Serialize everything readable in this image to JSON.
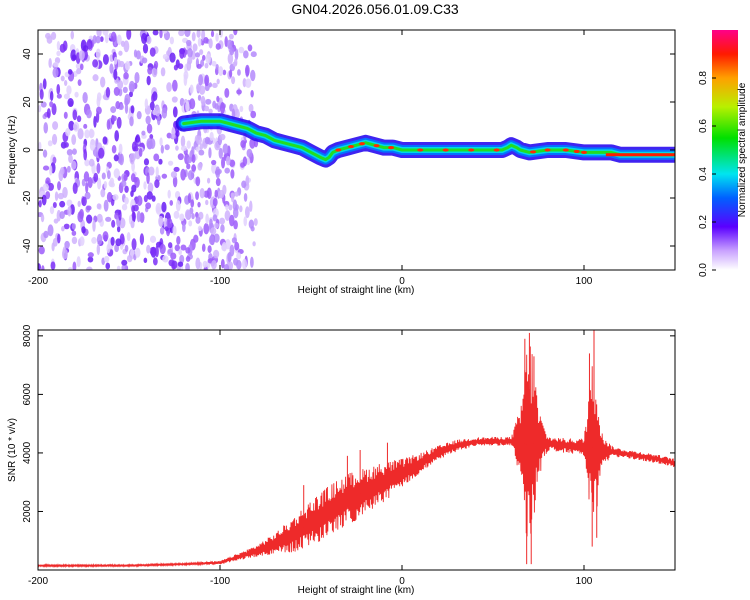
{
  "title": "GN04.2026.056.01.09.C33",
  "colors": {
    "background": "#ffffff",
    "spectrogram_noise": "#7b2ff7",
    "snr_line": "#ee2a2a",
    "axis": "#000000"
  },
  "chart_data": [
    {
      "type": "heatmap",
      "name": "spectrogram",
      "title": "GN04.2026.056.01.09.C33",
      "xlabel": "Height of straight line (km)",
      "ylabel": "Frequency (Hz)",
      "xlim": [
        -200,
        150
      ],
      "ylim": [
        -50,
        50
      ],
      "xticks": [
        -200,
        -100,
        0,
        100
      ],
      "yticks": [
        -40,
        -20,
        0,
        20,
        40
      ],
      "ridge_x": [
        -120,
        -110,
        -100,
        -95,
        -90,
        -85,
        -80,
        -75,
        -70,
        -65,
        -60,
        -55,
        -50,
        -45,
        -42,
        -40,
        -38,
        -35,
        -30,
        -25,
        -20,
        -15,
        -10,
        -5,
        0,
        10,
        20,
        30,
        40,
        50,
        55,
        58,
        60,
        63,
        65,
        70,
        80,
        90,
        100,
        105,
        110,
        115,
        120,
        130,
        140,
        150
      ],
      "ridge_y": [
        11,
        12,
        12,
        11,
        10,
        9,
        7,
        6,
        4,
        3,
        2,
        1,
        -1,
        -3,
        -4,
        -3,
        -1,
        0,
        1,
        2,
        3,
        2,
        1,
        1,
        0,
        0,
        0,
        0,
        0,
        0,
        0,
        1,
        2,
        1,
        0,
        -1,
        0,
        0,
        -1,
        -1,
        -1,
        -1,
        -2,
        -2,
        -2,
        -2
      ],
      "noise_region_x": [
        -200,
        -90
      ],
      "colorbar": {
        "label": "Normalized spectral amplitude",
        "range": [
          0.0,
          1.0
        ],
        "ticks": [
          "0.0",
          "0.2",
          "0.4",
          "0.6",
          "0.8"
        ]
      }
    },
    {
      "type": "line",
      "name": "snr",
      "title": "",
      "xlabel": "Height of straight line (km)",
      "ylabel": "SNR (10 * v/v)",
      "xlim": [
        -200,
        150
      ],
      "ylim": [
        0,
        8200
      ],
      "xticks": [
        -200,
        -100,
        0,
        100
      ],
      "yticks": [
        2000,
        4000,
        6000,
        8000
      ],
      "envelope_x": [
        -200,
        -150,
        -120,
        -100,
        -90,
        -80,
        -70,
        -60,
        -50,
        -40,
        -30,
        -20,
        -10,
        0,
        10,
        20,
        30,
        40,
        50,
        60,
        65,
        68,
        70,
        72,
        75,
        80,
        90,
        100,
        103,
        105,
        107,
        110,
        115,
        120,
        130,
        140,
        150
      ],
      "envelope_y": [
        150,
        150,
        200,
        250,
        450,
        650,
        900,
        1200,
        1600,
        2000,
        2400,
        2700,
        3000,
        3300,
        3650,
        4000,
        4250,
        4380,
        4400,
        4400,
        4350,
        4300,
        4300,
        4300,
        4350,
        4320,
        4250,
        4200,
        4200,
        4200,
        4150,
        4100,
        4050,
        4000,
        3900,
        3800,
        3650
      ],
      "noise_y": [
        30,
        30,
        30,
        60,
        120,
        200,
        350,
        600,
        800,
        900,
        900,
        800,
        700,
        500,
        350,
        250,
        200,
        150,
        150,
        150,
        1200,
        3200,
        3800,
        3200,
        1200,
        250,
        250,
        300,
        2500,
        3000,
        2600,
        600,
        200,
        150,
        150,
        150,
        150
      ],
      "spikes": [
        {
          "x": -54,
          "y": 2900
        },
        {
          "x": -48,
          "y": 1300
        },
        {
          "x": -44,
          "y": 2100
        },
        {
          "x": -30,
          "y": 3900
        },
        {
          "x": -23,
          "y": 4100
        },
        {
          "x": -8,
          "y": 4350
        },
        {
          "x": 67.5,
          "y": 7900
        },
        {
          "x": 68.5,
          "y": 200
        },
        {
          "x": 70,
          "y": 8100
        },
        {
          "x": 71,
          "y": 200
        },
        {
          "x": 72.5,
          "y": 7300
        },
        {
          "x": 103,
          "y": 7400
        },
        {
          "x": 104.5,
          "y": 800
        },
        {
          "x": 105.5,
          "y": 8200
        },
        {
          "x": 107,
          "y": 1100
        }
      ]
    }
  ]
}
